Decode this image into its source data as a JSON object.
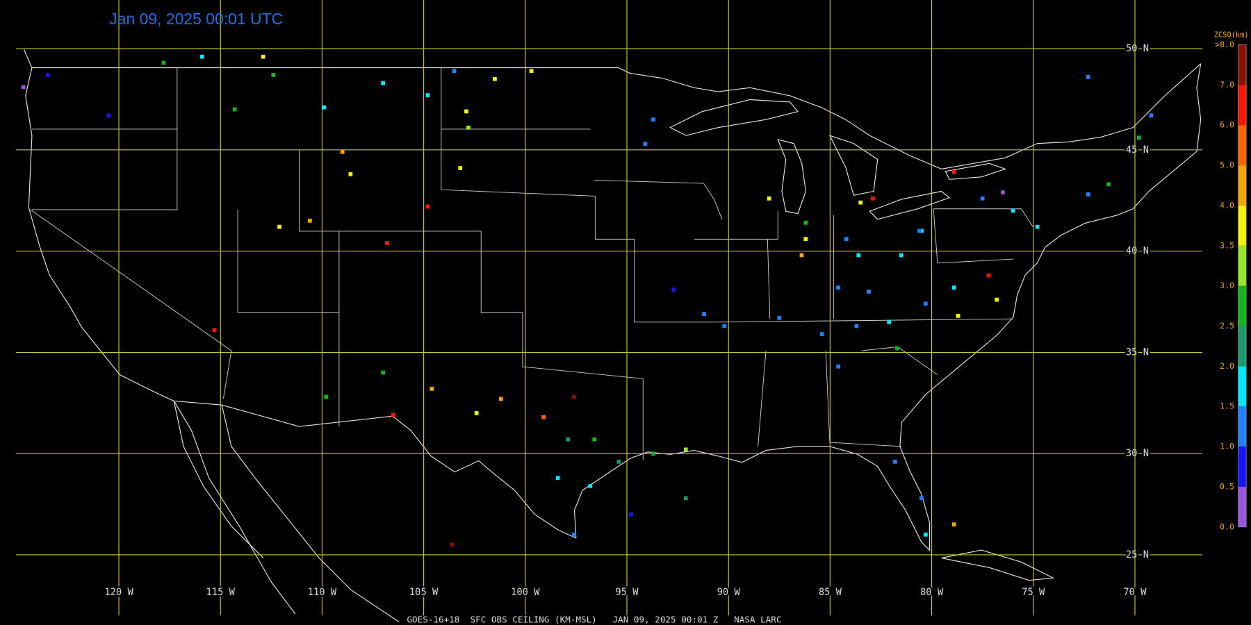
{
  "title": "Jan 09, 2025 00:01 UTC",
  "footer": "GOES-16+18  SFC OBS CEILING (KM-MSL)   JAN 09, 2025 00:01 Z   NASA LARC",
  "lat_lines": [
    {
      "value": 50,
      "label": "50 N"
    },
    {
      "value": 45,
      "label": "45 N"
    },
    {
      "value": 40,
      "label": "40 N"
    },
    {
      "value": 35,
      "label": "35 N"
    },
    {
      "value": 30,
      "label": "30 N"
    },
    {
      "value": 25,
      "label": "25 N"
    }
  ],
  "lon_lines": [
    {
      "value": -120,
      "label": "120 W"
    },
    {
      "value": -115,
      "label": "115 W"
    },
    {
      "value": -110,
      "label": "110 W"
    },
    {
      "value": -105,
      "label": "105 W"
    },
    {
      "value": -100,
      "label": "100 W"
    },
    {
      "value": -95,
      "label": "95 W"
    },
    {
      "value": -90,
      "label": "90 W"
    },
    {
      "value": -85,
      "label": "85 W"
    },
    {
      "value": -80,
      "label": "80 W"
    },
    {
      "value": -75,
      "label": "75 W"
    },
    {
      "value": -70,
      "label": "70 W"
    }
  ],
  "colorbar": {
    "title": "ZCSO(km)",
    "ticks": [
      {
        "value": 0,
        "label": "0.0"
      },
      {
        "value": 0.5,
        "label": "0.5"
      },
      {
        "value": 1,
        "label": "1.0"
      },
      {
        "value": 1.5,
        "label": "1.5"
      },
      {
        "value": 2,
        "label": "2.0"
      },
      {
        "value": 2.5,
        "label": "2.5"
      },
      {
        "value": 3,
        "label": "3.0"
      },
      {
        "value": 3.5,
        "label": "3.5"
      },
      {
        "value": 4,
        "label": "4.0"
      },
      {
        "value": 5,
        "label": "5.0"
      },
      {
        "value": 6,
        "label": "6.0"
      },
      {
        "value": 7,
        "label": "7.0"
      },
      {
        "value": 8,
        "label": ">8.0"
      }
    ],
    "colors": [
      "#9a55e0",
      "#1414ff",
      "#2080ff",
      "#00e8ff",
      "#1a9a6a",
      "#14b41e",
      "#96e628",
      "#f5f500",
      "#f5a500",
      "#ff6400",
      "#ff1400",
      "#8c1000"
    ]
  },
  "stations": [
    [
      -124.7,
      48.1,
      0.3
    ],
    [
      -123.5,
      48.7,
      0.8
    ],
    [
      -120.5,
      46.7,
      0.8
    ],
    [
      -117.8,
      49.3,
      2.8
    ],
    [
      -115.9,
      49.6,
      1.8
    ],
    [
      -112.9,
      49.6,
      3.8
    ],
    [
      -112.4,
      48.7,
      2.8
    ],
    [
      -114.3,
      47.0,
      2.6
    ],
    [
      -109.9,
      47.1,
      1.8
    ],
    [
      -107.0,
      48.3,
      1.7
    ],
    [
      -104.8,
      47.7,
      1.8
    ],
    [
      -103.5,
      48.9,
      1.2
    ],
    [
      -101.5,
      48.5,
      3.8
    ],
    [
      -99.7,
      48.9,
      3.8
    ],
    [
      -102.9,
      46.9,
      3.6
    ],
    [
      -102.8,
      46.1,
      3.2
    ],
    [
      -109.0,
      44.9,
      4.5
    ],
    [
      -108.6,
      43.8,
      3.8
    ],
    [
      -103.2,
      44.1,
      3.7
    ],
    [
      -104.8,
      42.2,
      6.5
    ],
    [
      -106.8,
      40.4,
      6.5
    ],
    [
      -112.1,
      41.2,
      3.8
    ],
    [
      -110.6,
      41.5,
      4.5
    ],
    [
      -115.3,
      36.1,
      6.5
    ],
    [
      -109.8,
      32.8,
      2.8
    ],
    [
      -107.0,
      34.0,
      2.8
    ],
    [
      -104.6,
      33.2,
      4.5
    ],
    [
      -102.4,
      32.0,
      3.8
    ],
    [
      -101.2,
      32.7,
      4.5
    ],
    [
      -106.5,
      31.9,
      6.5
    ],
    [
      -103.6,
      25.5,
      7.5
    ],
    [
      -97.6,
      32.8,
      7.5
    ],
    [
      -99.1,
      31.8,
      5.5
    ],
    [
      -97.9,
      30.7,
      2.2
    ],
    [
      -96.6,
      30.7,
      2.7
    ],
    [
      -95.4,
      29.6,
      2.2
    ],
    [
      -98.4,
      28.8,
      1.8
    ],
    [
      -96.8,
      28.4,
      1.7
    ],
    [
      -97.6,
      26.0,
      1.0
    ],
    [
      -92.1,
      30.2,
      3.3
    ],
    [
      -93.7,
      30.0,
      2.9
    ],
    [
      -92.1,
      27.8,
      2.2
    ],
    [
      -94.8,
      27.0,
      0.8
    ],
    [
      -92.7,
      38.1,
      0.9
    ],
    [
      -93.7,
      46.5,
      1.2
    ],
    [
      -94.1,
      45.3,
      1.1
    ],
    [
      -88.0,
      42.6,
      3.7
    ],
    [
      -86.4,
      39.8,
      4.6
    ],
    [
      -86.2,
      40.6,
      3.8
    ],
    [
      -86.2,
      41.4,
      2.9
    ],
    [
      -83.5,
      42.4,
      3.6
    ],
    [
      -82.9,
      42.6,
      6.5
    ],
    [
      -84.2,
      40.6,
      1.2
    ],
    [
      -83.6,
      39.8,
      1.8
    ],
    [
      -81.5,
      39.8,
      1.7
    ],
    [
      -80.5,
      41.0,
      1.7
    ],
    [
      -84.6,
      38.2,
      1.1
    ],
    [
      -84.6,
      34.3,
      1.0
    ],
    [
      -85.4,
      35.9,
      1.0
    ],
    [
      -81.7,
      35.2,
      2.8
    ],
    [
      -78.9,
      43.9,
      6.5
    ],
    [
      -76.5,
      42.9,
      0.3
    ],
    [
      -77.5,
      42.6,
      1.0
    ],
    [
      -77.2,
      38.8,
      6.5
    ],
    [
      -76.8,
      37.6,
      3.8
    ],
    [
      -78.7,
      36.8,
      3.6
    ],
    [
      -78.9,
      38.2,
      1.8
    ],
    [
      -80.3,
      37.4,
      1.2
    ],
    [
      -76.0,
      42.0,
      1.8
    ],
    [
      -74.8,
      41.2,
      1.8
    ],
    [
      -72.3,
      42.8,
      1.2
    ],
    [
      -71.3,
      43.3,
      2.8
    ],
    [
      -72.3,
      48.6,
      1.2
    ],
    [
      -69.2,
      46.7,
      1.2
    ],
    [
      -69.8,
      45.6,
      2.7
    ],
    [
      -80.3,
      26.0,
      1.8
    ],
    [
      -80.5,
      27.8,
      1.1
    ],
    [
      -81.8,
      29.6,
      1.1
    ],
    [
      -78.9,
      26.5,
      4.5
    ],
    [
      -91.2,
      36.9,
      1.1
    ],
    [
      -90.2,
      36.3,
      1.0
    ],
    [
      -87.5,
      36.7,
      1.2
    ],
    [
      -83.7,
      36.3,
      1.2
    ],
    [
      -82.1,
      36.5,
      1.8
    ],
    [
      -80.6,
      41.0,
      1.0
    ],
    [
      -83.1,
      38.0,
      1.0
    ]
  ]
}
